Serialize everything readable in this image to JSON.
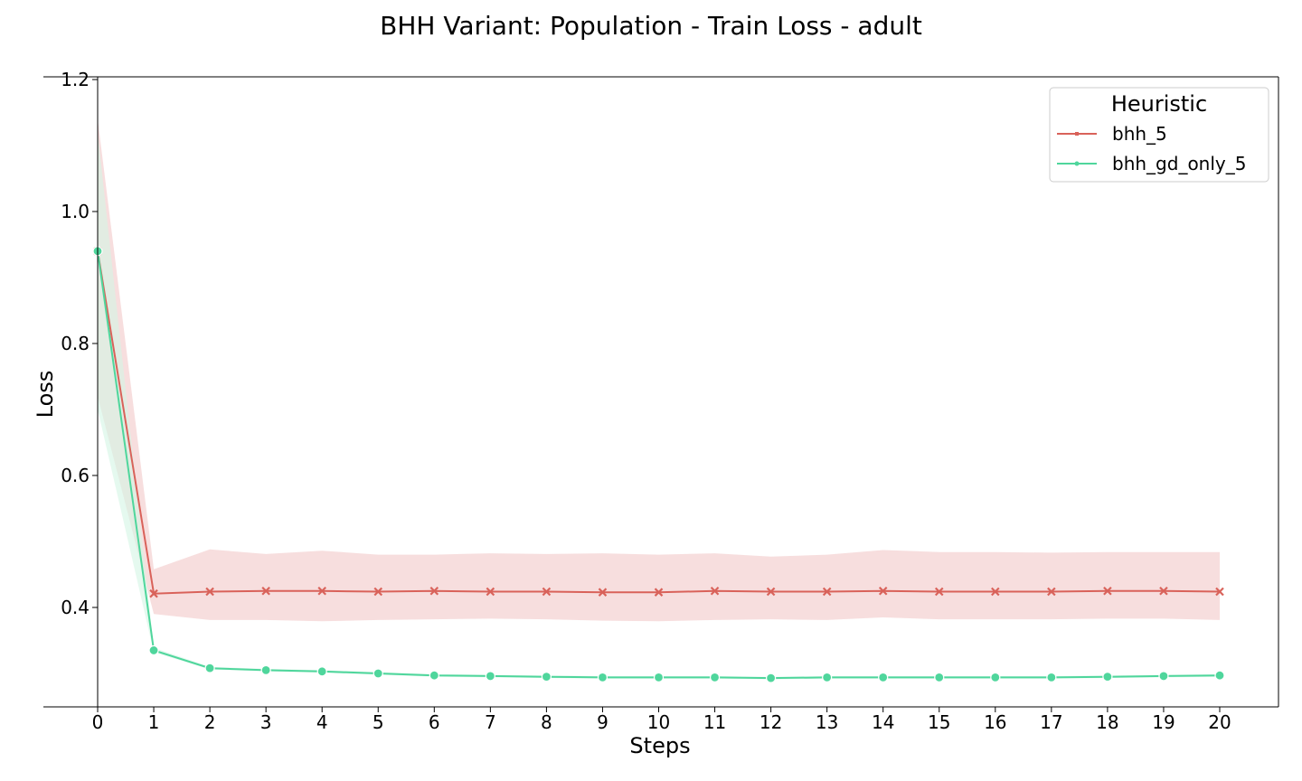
{
  "chart_data": {
    "type": "line",
    "title": "BHH Variant: Population - Train Loss - adult",
    "xlabel": "Steps",
    "ylabel": "Loss",
    "x": [
      0,
      1,
      2,
      3,
      4,
      5,
      6,
      7,
      8,
      9,
      10,
      11,
      12,
      13,
      14,
      15,
      16,
      17,
      18,
      19,
      20
    ],
    "xticks": [
      "0",
      "1",
      "2",
      "3",
      "4",
      "5",
      "6",
      "7",
      "8",
      "9",
      "10",
      "11",
      "12",
      "13",
      "14",
      "15",
      "16",
      "17",
      "18",
      "19",
      "20"
    ],
    "yticks": [
      "0.4",
      "0.6",
      "0.8",
      "1.0",
      "1.2"
    ],
    "ylim": [
      0.305,
      1.2
    ],
    "xlim": [
      0,
      21
    ],
    "grid": false,
    "legend": {
      "title": "Heuristic",
      "placement": "top-right"
    },
    "series": [
      {
        "name": "bhh_5",
        "color": "#d9625a",
        "band_color": "#f7dcdc",
        "marker": "x",
        "values": [
          0.94,
          0.421,
          0.424,
          0.425,
          0.425,
          0.424,
          0.425,
          0.424,
          0.424,
          0.423,
          0.423,
          0.425,
          0.424,
          0.424,
          0.425,
          0.424,
          0.424,
          0.424,
          0.425,
          0.425,
          0.424
        ],
        "lower": [
          0.72,
          0.39,
          0.381,
          0.381,
          0.379,
          0.381,
          0.382,
          0.383,
          0.382,
          0.38,
          0.379,
          0.381,
          0.382,
          0.381,
          0.385,
          0.382,
          0.382,
          0.382,
          0.383,
          0.383,
          0.381
        ],
        "upper": [
          1.14,
          0.458,
          0.488,
          0.481,
          0.486,
          0.48,
          0.48,
          0.482,
          0.481,
          0.482,
          0.48,
          0.482,
          0.477,
          0.48,
          0.487,
          0.484,
          0.484,
          0.483,
          0.484,
          0.484,
          0.484
        ]
      },
      {
        "name": "bhh_gd_only_5",
        "color": "#4fd69c",
        "band_color": "#d4f5e5",
        "marker": "o",
        "values": [
          0.94,
          0.335,
          0.308,
          0.305,
          0.303,
          0.3,
          0.297,
          0.296,
          0.295,
          0.294,
          0.294,
          0.294,
          0.293,
          0.294,
          0.294,
          0.294,
          0.294,
          0.294,
          0.295,
          0.296,
          0.297
        ],
        "lower": [
          0.7,
          0.332,
          0.306,
          0.303,
          0.301,
          0.298,
          0.295,
          0.294,
          0.293,
          0.292,
          0.292,
          0.292,
          0.291,
          0.292,
          0.292,
          0.292,
          0.292,
          0.292,
          0.293,
          0.294,
          0.295
        ],
        "upper": [
          1.12,
          0.339,
          0.31,
          0.307,
          0.305,
          0.302,
          0.299,
          0.298,
          0.297,
          0.296,
          0.296,
          0.296,
          0.295,
          0.296,
          0.296,
          0.296,
          0.296,
          0.296,
          0.297,
          0.298,
          0.299
        ]
      }
    ]
  }
}
